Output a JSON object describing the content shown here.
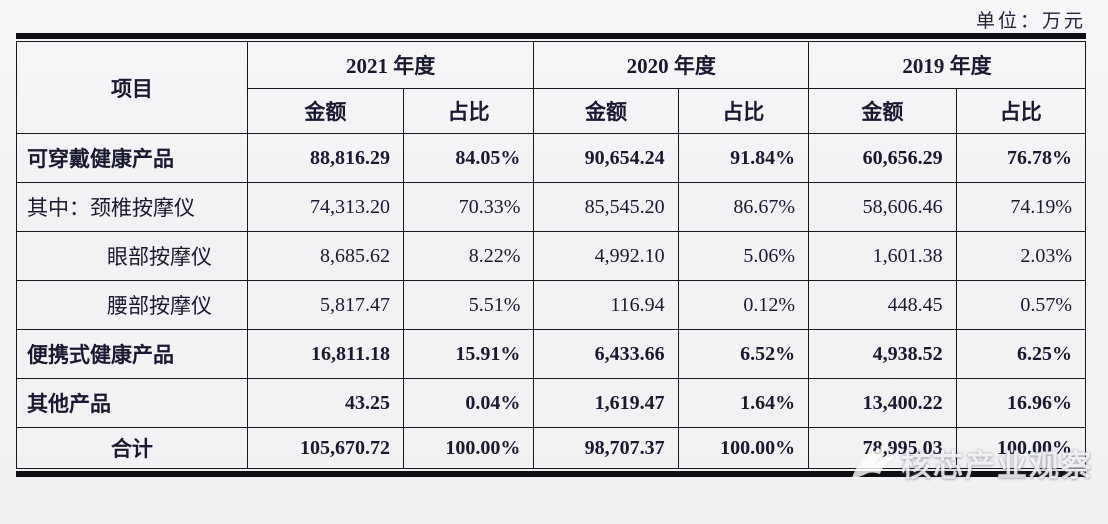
{
  "unit_label": "单位：万元",
  "table": {
    "header": {
      "item": "项目",
      "year_groups": [
        {
          "label": "2021 年度"
        },
        {
          "label": "2020 年度"
        },
        {
          "label": "2019 年度"
        }
      ],
      "amount_label": "金额",
      "share_label": "占比"
    },
    "rows": [
      {
        "label": "可穿戴健康产品",
        "bold": true,
        "indent": false,
        "total": false,
        "cells": [
          "88,816.29",
          "84.05%",
          "90,654.24",
          "91.84%",
          "60,656.29",
          "76.78%"
        ]
      },
      {
        "label": "其中：颈椎按摩仪",
        "bold": false,
        "indent": false,
        "total": false,
        "cells": [
          "74,313.20",
          "70.33%",
          "85,545.20",
          "86.67%",
          "58,606.46",
          "74.19%"
        ]
      },
      {
        "label": "眼部按摩仪",
        "bold": false,
        "indent": true,
        "total": false,
        "cells": [
          "8,685.62",
          "8.22%",
          "4,992.10",
          "5.06%",
          "1,601.38",
          "2.03%"
        ]
      },
      {
        "label": "腰部按摩仪",
        "bold": false,
        "indent": true,
        "total": false,
        "cells": [
          "5,817.47",
          "5.51%",
          "116.94",
          "0.12%",
          "448.45",
          "0.57%"
        ]
      },
      {
        "label": "便携式健康产品",
        "bold": true,
        "indent": false,
        "total": false,
        "cells": [
          "16,811.18",
          "15.91%",
          "6,433.66",
          "6.52%",
          "4,938.52",
          "6.25%"
        ]
      },
      {
        "label": "其他产品",
        "bold": true,
        "indent": false,
        "total": false,
        "cells": [
          "43.25",
          "0.04%",
          "1,619.47",
          "1.64%",
          "13,400.22",
          "16.96%"
        ]
      },
      {
        "label": "合计",
        "bold": true,
        "indent": false,
        "total": true,
        "cells": [
          "105,670.72",
          "100.00%",
          "98,707.37",
          "100.00%",
          "78,995.03",
          "100.00%"
        ]
      }
    ]
  },
  "watermark": {
    "text": "核芯产业观察",
    "color": "#ffffff"
  }
}
